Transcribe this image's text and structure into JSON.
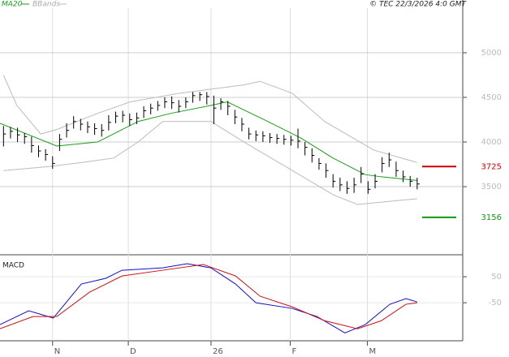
{
  "chart_data": {
    "type": "ohlc",
    "legend": [
      {
        "name": "MA20",
        "color": "#1a9e1a"
      },
      {
        "name": "BBands",
        "color": "#bbbbbb"
      }
    ],
    "credit": "© TEC 22/3/2026 4:0 GMT",
    "xlim": [
      -0.5,
      65.5
    ],
    "xticks": [
      {
        "value": 7,
        "label": "N"
      },
      {
        "value": 17.8,
        "label": "D"
      },
      {
        "value": 29.6,
        "label": "26"
      },
      {
        "value": 40.9,
        "label": "F"
      },
      {
        "value": 51.9,
        "label": "M"
      }
    ],
    "ylim": [
      2755,
      5500
    ],
    "yticks": [
      3500,
      4000,
      4500,
      5000
    ],
    "close": [
      4090,
      4120,
      4080,
      4060,
      3960,
      3900,
      3860,
      3760,
      4030,
      4130,
      4230,
      4200,
      4170,
      4150,
      4130,
      4220,
      4290,
      4300,
      4250,
      4270,
      4350,
      4380,
      4410,
      4450,
      4440,
      4400,
      4450,
      4520,
      4530,
      4510,
      4380,
      4450,
      4400,
      4280,
      4200,
      4090,
      4080,
      4070,
      4050,
      4040,
      4030,
      4020,
      4010,
      3940,
      3850,
      3760,
      3680,
      3560,
      3520,
      3480,
      3520,
      3640,
      3470,
      3560,
      3760,
      3800,
      3680,
      3610,
      3560,
      3530
    ],
    "high": [
      4180,
      4170,
      4160,
      4100,
      4060,
      3960,
      3920,
      3840,
      4090,
      4210,
      4290,
      4260,
      4230,
      4210,
      4200,
      4300,
      4340,
      4350,
      4320,
      4330,
      4400,
      4430,
      4460,
      4500,
      4510,
      4470,
      4500,
      4560,
      4560,
      4560,
      4520,
      4490,
      4460,
      4360,
      4270,
      4160,
      4130,
      4120,
      4100,
      4090,
      4080,
      4070,
      4150,
      4000,
      3930,
      3820,
      3760,
      3640,
      3600,
      3560,
      3600,
      3720,
      3560,
      3640,
      3830,
      3880,
      3780,
      3680,
      3620,
      3600
    ],
    "low": [
      3950,
      4040,
      4000,
      3980,
      3880,
      3830,
      3790,
      3700,
      3900,
      4050,
      4150,
      4130,
      4100,
      4080,
      4060,
      4130,
      4210,
      4220,
      4180,
      4200,
      4270,
      4310,
      4350,
      4380,
      4370,
      4330,
      4380,
      4440,
      4460,
      4420,
      4200,
      4360,
      4300,
      4200,
      4120,
      4030,
      4010,
      4000,
      3990,
      3980,
      3970,
      3960,
      3930,
      3850,
      3770,
      3690,
      3600,
      3490,
      3450,
      3420,
      3430,
      3540,
      3420,
      3480,
      3660,
      3720,
      3610,
      3550,
      3500,
      3470
    ],
    "bar_color": "#000000",
    "lines": [
      {
        "color": "#1a9e1a",
        "x": [
          -0.5,
          7.6,
          13.4,
          19.2,
          23.8,
          29.6,
          31.9,
          37.7,
          42.4,
          47,
          51.6,
          53.9,
          59
        ],
        "values": [
          4210,
          3955,
          4000,
          4230,
          4320,
          4410,
          4450,
          4230,
          4045,
          3820,
          3635,
          3610,
          3570
        ]
      },
      {
        "color": "#bbbbbb",
        "x": [
          0,
          1.9,
          5.3,
          7.6,
          13.4,
          18.1,
          25,
          34.3,
          36.6,
          41.2,
          45.8,
          52.8,
          59
        ],
        "values": [
          4750,
          4410,
          4090,
          4140,
          4320,
          4450,
          4545,
          4640,
          4680,
          4545,
          4230,
          3910,
          3770
        ]
      },
      {
        "color": "#bbbbbb",
        "x": [
          0,
          6.5,
          11.1,
          15.7,
          19.2,
          22.7,
          29.6,
          34.3,
          41.2,
          47,
          50.5,
          59
        ],
        "values": [
          3680,
          3725,
          3770,
          3820,
          4000,
          4230,
          4230,
          4000,
          3680,
          3410,
          3300,
          3365
        ]
      }
    ],
    "levels": [
      {
        "value": 3725,
        "color": "#cc0000"
      },
      {
        "value": 3156,
        "color": "#119911"
      }
    ],
    "macd": {
      "title": "MACD",
      "ylim": [
        -190,
        122
      ],
      "yticks": [
        50,
        -50
      ],
      "series": [
        {
          "color": "#1111cc",
          "x": [
            -0.5,
            3.6,
            7.1,
            11.1,
            14.6,
            16.9,
            22.7,
            26.2,
            29.6,
            33.1,
            36,
            41.2,
            44.7,
            48.7,
            51.6,
            55.1,
            57.4,
            59
          ],
          "values": [
            -134,
            -81,
            -109,
            22,
            44,
            75,
            84,
            100,
            84,
            22,
            -50,
            -72,
            -103,
            -166,
            -134,
            -56,
            -34,
            -47
          ]
        },
        {
          "color": "#cc1111",
          "x": [
            -0.5,
            4.2,
            7.6,
            12.3,
            16.9,
            22.7,
            28.5,
            33.1,
            36.6,
            41.2,
            45.8,
            50.5,
            53.9,
            57.4,
            59
          ],
          "values": [
            -150,
            -103,
            -103,
            -9,
            53,
            75,
            97,
            53,
            -25,
            -66,
            -119,
            -150,
            -119,
            -56,
            -50
          ]
        }
      ]
    }
  }
}
